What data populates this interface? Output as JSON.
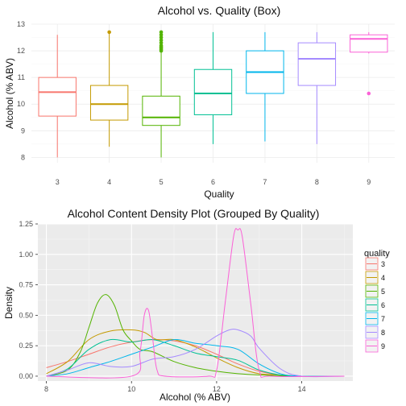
{
  "chart_data": [
    {
      "type": "box",
      "title": "Alcohol vs. Quality (Box)",
      "xlabel": "Quality",
      "ylabel": "Alcohol (% ABV)",
      "categories": [
        "3",
        "4",
        "5",
        "6",
        "7",
        "8",
        "9"
      ],
      "ylim": [
        7.8,
        13.0
      ],
      "yticks": [
        "8",
        "9",
        "10",
        "11",
        "12",
        "13"
      ],
      "grid": true,
      "colors": [
        "#F8766D",
        "#C49A00",
        "#53B400",
        "#00C094",
        "#00B6EB",
        "#A58AFF",
        "#FB61D7"
      ],
      "boxes": [
        {
          "min": 8.0,
          "q1": 9.55,
          "median": 10.45,
          "q3": 11.0,
          "max": 12.6,
          "outliers": []
        },
        {
          "min": 8.4,
          "q1": 9.4,
          "median": 10.0,
          "q3": 10.7,
          "max": 12.7,
          "outliers": [
            12.7
          ]
        },
        {
          "min": 8.0,
          "q1": 9.2,
          "median": 9.5,
          "q3": 10.3,
          "max": 11.95,
          "outliers": [
            12.0,
            12.05,
            12.1,
            12.15,
            12.2,
            12.3,
            12.4,
            12.5,
            12.6,
            12.7
          ]
        },
        {
          "min": 8.5,
          "q1": 9.6,
          "median": 10.4,
          "q3": 11.3,
          "max": 12.7,
          "outliers": []
        },
        {
          "min": 8.6,
          "q1": 10.4,
          "median": 11.2,
          "q3": 12.0,
          "max": 12.7,
          "outliers": []
        },
        {
          "min": 8.5,
          "q1": 10.7,
          "median": 11.7,
          "q3": 12.3,
          "max": 12.7,
          "outliers": []
        },
        {
          "min": 11.9,
          "q1": 11.95,
          "median": 12.45,
          "q3": 12.6,
          "max": 12.7,
          "outliers": [
            10.4
          ]
        }
      ]
    },
    {
      "type": "density",
      "title": "Alcohol Content Density Plot (Grouped By Quality)",
      "xlabel": "Alcohol (% ABV)",
      "ylabel": "Density",
      "xlim": [
        7.8,
        15.2
      ],
      "ylim": [
        -0.04,
        1.25
      ],
      "xticks": [
        "8",
        "10",
        "12",
        "14"
      ],
      "yticks": [
        "0.00",
        "0.25",
        "0.50",
        "0.75",
        "1.00",
        "1.25"
      ],
      "grid": true,
      "legend": {
        "title": "quality",
        "position": "right"
      },
      "series": [
        {
          "name": "3",
          "color": "#F8766D",
          "x": [
            8.0,
            8.5,
            9.0,
            9.5,
            10.0,
            10.5,
            11.0,
            11.5,
            12.0,
            12.5,
            13.0,
            13.5,
            14.0,
            15.0
          ],
          "y": [
            0.07,
            0.12,
            0.18,
            0.24,
            0.28,
            0.3,
            0.29,
            0.25,
            0.18,
            0.1,
            0.04,
            0.01,
            0.0,
            0.0
          ]
        },
        {
          "name": "4",
          "color": "#C49A00",
          "x": [
            8.0,
            8.5,
            9.0,
            9.5,
            10.0,
            10.3,
            10.6,
            11.0,
            11.5,
            12.0,
            12.5,
            13.0,
            13.5,
            14.0,
            15.0
          ],
          "y": [
            0.02,
            0.12,
            0.3,
            0.37,
            0.38,
            0.36,
            0.3,
            0.3,
            0.24,
            0.15,
            0.07,
            0.02,
            0.01,
            0.0,
            0.0
          ]
        },
        {
          "name": "5",
          "color": "#53B400",
          "x": [
            8.0,
            8.5,
            8.8,
            9.0,
            9.2,
            9.4,
            9.6,
            9.8,
            10.0,
            10.2,
            10.5,
            11.0,
            11.5,
            12.0,
            12.5,
            13.0,
            14.0,
            15.0
          ],
          "y": [
            0.0,
            0.05,
            0.2,
            0.4,
            0.6,
            0.67,
            0.58,
            0.38,
            0.29,
            0.22,
            0.2,
            0.12,
            0.07,
            0.04,
            0.02,
            0.01,
            0.0,
            0.0
          ]
        },
        {
          "name": "6",
          "color": "#00C094",
          "x": [
            8.0,
            8.5,
            9.0,
            9.5,
            10.0,
            10.5,
            11.0,
            11.5,
            12.0,
            12.5,
            13.0,
            13.5,
            14.0,
            15.0
          ],
          "y": [
            0.0,
            0.06,
            0.22,
            0.3,
            0.28,
            0.3,
            0.25,
            0.19,
            0.16,
            0.13,
            0.05,
            0.01,
            0.0,
            0.0
          ]
        },
        {
          "name": "7",
          "color": "#00B6EB",
          "x": [
            8.0,
            8.5,
            9.0,
            9.5,
            10.0,
            10.5,
            11.0,
            11.5,
            12.0,
            12.5,
            13.0,
            13.5,
            14.0,
            15.0
          ],
          "y": [
            0.0,
            0.02,
            0.07,
            0.12,
            0.18,
            0.24,
            0.3,
            0.27,
            0.25,
            0.22,
            0.1,
            0.02,
            0.0,
            0.0
          ]
        },
        {
          "name": "8",
          "color": "#A58AFF",
          "x": [
            8.0,
            8.5,
            9.0,
            9.5,
            10.0,
            10.5,
            11.0,
            11.5,
            12.0,
            12.3,
            12.5,
            12.8,
            13.0,
            13.5,
            14.0,
            15.0
          ],
          "y": [
            0.0,
            0.05,
            0.11,
            0.08,
            0.08,
            0.14,
            0.16,
            0.22,
            0.33,
            0.38,
            0.38,
            0.33,
            0.23,
            0.06,
            0.0,
            0.0
          ]
        },
        {
          "name": "9",
          "color": "#FB61D7",
          "x": [
            8.0,
            10.0,
            10.2,
            10.3,
            10.4,
            10.5,
            10.6,
            10.8,
            11.8,
            12.0,
            12.2,
            12.4,
            12.5,
            12.6,
            12.8,
            13.0,
            13.3,
            15.0
          ],
          "y": [
            0.0,
            0.0,
            0.2,
            0.5,
            0.54,
            0.3,
            0.05,
            0.0,
            0.0,
            0.05,
            0.6,
            1.15,
            1.2,
            1.15,
            0.6,
            0.05,
            0.0,
            0.0
          ]
        }
      ]
    }
  ]
}
